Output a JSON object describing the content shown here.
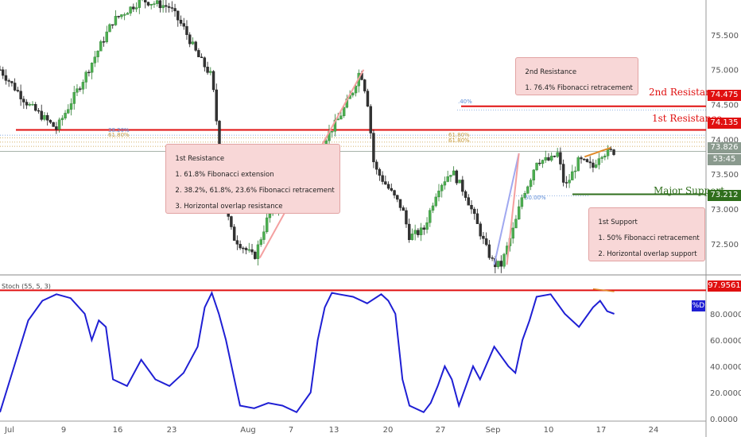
{
  "chart_data": [
    {
      "type": "candlestick",
      "ylim": [
        72.1,
        76.0
      ],
      "y_ticks": [
        "72.500",
        "73.000",
        "73.500",
        "74.000",
        "74.500",
        "75.000",
        "75.500"
      ],
      "y_tick_values": [
        72.5,
        73.0,
        73.5,
        74.0,
        74.5,
        75.0,
        75.5
      ],
      "x_tick_labels": [
        "Jul",
        "9",
        "16",
        "23",
        "Aug",
        "7",
        "13",
        "20",
        "27",
        "Sep",
        "10",
        "17",
        "24"
      ],
      "close_path": {
        "x": [
          0,
          4,
          8,
          12,
          16,
          20,
          24,
          26,
          28,
          30,
          32,
          33,
          36,
          38,
          40,
          43,
          46,
          48,
          50,
          51,
          52,
          53,
          55,
          57,
          58,
          60,
          62,
          64,
          66,
          69,
          70,
          71,
          72,
          73,
          74,
          75,
          76,
          78,
          79,
          80,
          82,
          84,
          85,
          87
        ],
        "y": [
          75.0,
          74.5,
          74.15,
          74.9,
          75.7,
          76.0,
          75.9,
          75.6,
          75.2,
          74.9,
          73.0,
          72.6,
          72.3,
          72.9,
          73.1,
          73.6,
          74.0,
          74.3,
          74.7,
          75.0,
          74.6,
          73.6,
          73.3,
          73.0,
          72.6,
          72.7,
          73.3,
          73.55,
          73.2,
          72.4,
          72.2,
          72.2,
          72.5,
          72.8,
          73.2,
          73.4,
          73.7,
          73.7,
          73.8,
          73.3,
          73.7,
          73.6,
          73.8,
          73.826
        ]
      },
      "levels": [
        {
          "name": "2nd Resistance",
          "value": 74.475,
          "color": "#e01010"
        },
        {
          "name": "1st Resistance",
          "value": 74.135,
          "color": "#e01010"
        },
        {
          "name": "Major Support",
          "value": 73.212,
          "color": "#2f6e1c"
        }
      ],
      "last_price": "73.826",
      "countdown": "53:45",
      "fib_labels": [
        "38.20%",
        "61.80%",
        "61.80%",
        "61.80%",
        "50.00%",
        ".40%"
      ],
      "annotations": [
        {
          "name": "2nd-resistance-note",
          "lines": [
            "2nd Resistance",
            "1. 76.4% Fibonacci retracement"
          ]
        },
        {
          "name": "1st-resistance-note",
          "lines": [
            "1st Resistance",
            "1. 61.8% Fibonacci extension",
            "2. 38.2%, 61.8%, 23.6% Fibonacci retracement",
            "3. Horizontal overlap resistance"
          ]
        },
        {
          "name": "1st-support-note",
          "lines": [
            "1st Support",
            "1. 50% Fibonacci retracement",
            "2. Horizontal overlap support"
          ]
        }
      ]
    },
    {
      "type": "line",
      "title": "Stoch (55, 5, 3)",
      "ylim": [
        0,
        100
      ],
      "y_ticks": [
        "0.0000",
        "20.0000",
        "40.0000",
        "60.0000",
        "80.0000"
      ],
      "y_tick_values": [
        0,
        20,
        40,
        60,
        80
      ],
      "series_label": "%D",
      "level": {
        "value": 97.9561,
        "label": "97.9561"
      },
      "x": [
        0,
        2,
        4,
        6,
        8,
        10,
        12,
        13,
        14,
        15,
        16,
        18,
        20,
        22,
        24,
        26,
        28,
        29,
        30,
        31,
        32,
        34,
        36,
        38,
        40,
        42,
        44,
        45,
        46,
        47,
        48,
        50,
        52,
        54,
        55,
        56,
        57,
        58,
        60,
        61,
        62,
        63,
        64,
        65,
        66,
        67,
        68,
        70,
        72,
        73,
        74,
        75,
        76,
        78,
        80,
        82,
        84,
        85,
        86,
        87
      ],
      "values": [
        5,
        40,
        75,
        90,
        95,
        92,
        80,
        60,
        75,
        70,
        30,
        25,
        45,
        30,
        25,
        35,
        55,
        85,
        96,
        80,
        60,
        10,
        8,
        12,
        10,
        5,
        20,
        60,
        85,
        96,
        95,
        93,
        88,
        95,
        90,
        80,
        30,
        10,
        5,
        12,
        25,
        40,
        30,
        10,
        25,
        40,
        30,
        55,
        40,
        35,
        60,
        75,
        93,
        95,
        80,
        70,
        85,
        90,
        82,
        80
      ]
    }
  ],
  "icons": {
    "pct_badge": "percent-d-icon"
  },
  "colors": {
    "candle_up": "#2e7d32",
    "candle_down": "#1a1a1a",
    "resistance": "#e01010",
    "support": "#2f6e1c",
    "stoch_line": "#1f1fd4",
    "last_price": "#8a9a8e",
    "fib": "#5a8ad6"
  }
}
